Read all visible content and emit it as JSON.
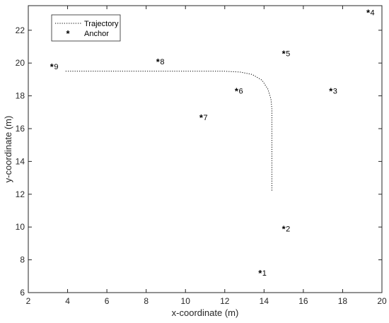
{
  "chart_data": {
    "type": "scatter",
    "xlabel": "x-coordinate (m)",
    "ylabel": "y-coordinate (m)",
    "xlim": [
      2,
      20
    ],
    "ylim": [
      6,
      23.5
    ],
    "xticks": [
      2,
      4,
      6,
      8,
      10,
      12,
      14,
      16,
      18,
      20
    ],
    "yticks": [
      6,
      8,
      10,
      12,
      14,
      16,
      18,
      20,
      22
    ],
    "legend": {
      "position": "top-left",
      "entries": [
        {
          "label": "Trajectory",
          "style": "dotted-line"
        },
        {
          "label": "Anchor",
          "style": "asterisk-marker"
        }
      ]
    },
    "series": [
      {
        "name": "Trajectory",
        "style": "dotted",
        "color": "#000000",
        "x": [
          3.9,
          12.0,
          12.8,
          13.4,
          13.9,
          14.2,
          14.35,
          14.4,
          14.4
        ],
        "y": [
          19.5,
          19.5,
          19.45,
          19.3,
          18.95,
          18.4,
          17.8,
          17.2,
          12.2
        ]
      },
      {
        "name": "Anchor",
        "style": "asterisk",
        "color": "#000000",
        "points": [
          {
            "label": "1",
            "x": 13.8,
            "y": 7.2
          },
          {
            "label": "2",
            "x": 15.0,
            "y": 9.9
          },
          {
            "label": "3",
            "x": 17.4,
            "y": 18.3
          },
          {
            "label": "4",
            "x": 19.3,
            "y": 23.1
          },
          {
            "label": "5",
            "x": 15.0,
            "y": 20.6
          },
          {
            "label": "6",
            "x": 12.6,
            "y": 18.3
          },
          {
            "label": "7",
            "x": 10.8,
            "y": 16.7
          },
          {
            "label": "8",
            "x": 8.6,
            "y": 20.1
          },
          {
            "label": "9",
            "x": 3.2,
            "y": 19.8
          }
        ]
      }
    ],
    "grid": false
  }
}
